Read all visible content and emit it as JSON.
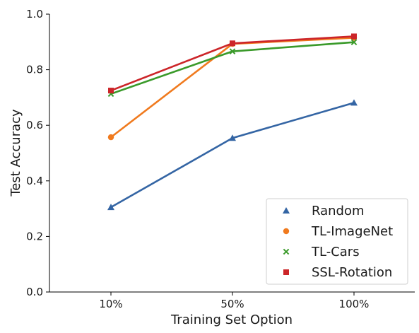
{
  "chart_data": {
    "type": "line",
    "title": "",
    "xlabel": "Training Set Option",
    "ylabel": "Test Accuracy",
    "categories": [
      "10%",
      "50%",
      "100%"
    ],
    "ylim": [
      0.0,
      1.0
    ],
    "yticks": [
      "0.0",
      "0.2",
      "0.4",
      "0.6",
      "0.8",
      "1.0"
    ],
    "grid": false,
    "legend_position": "bottom-right",
    "series": [
      {
        "name": "Random",
        "values": [
          0.305,
          0.554,
          0.681
        ],
        "color": "#3465a4",
        "marker": "triangle"
      },
      {
        "name": "TL-ImageNet",
        "values": [
          0.557,
          0.893,
          0.915
        ],
        "color": "#f07a1e",
        "marker": "circle"
      },
      {
        "name": "TL-Cars",
        "values": [
          0.713,
          0.866,
          0.899
        ],
        "color": "#3a9a2a",
        "marker": "x"
      },
      {
        "name": "SSL-Rotation",
        "values": [
          0.725,
          0.895,
          0.92
        ],
        "color": "#cc2529",
        "marker": "square"
      }
    ]
  }
}
